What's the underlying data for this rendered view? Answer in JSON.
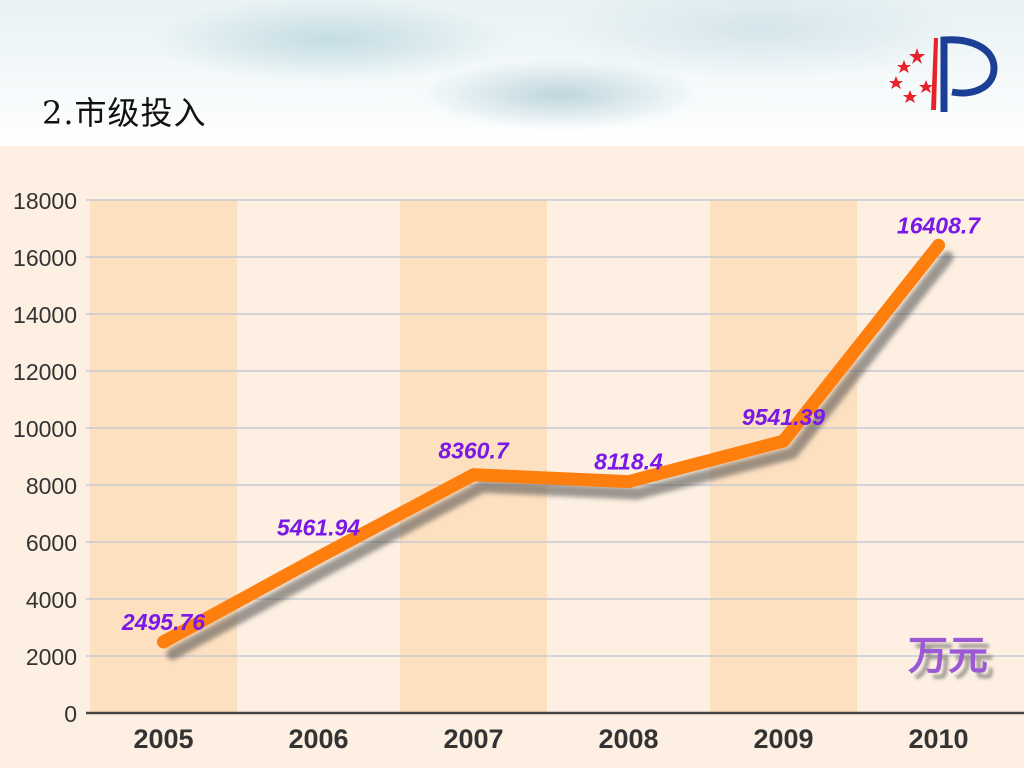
{
  "slide": {
    "title": "2.市级投入"
  },
  "logo": {
    "icon": "star-p-emblem-icon",
    "colors": {
      "stars": "#e8222a",
      "letter": "#1a3f95"
    }
  },
  "colors": {
    "line": "#ff7f0e",
    "data_label": "#7a18e8",
    "band_dark": "#fde0c0",
    "band_light": "#fdf0e2",
    "unit": "#9b59d6"
  },
  "chart_data": {
    "type": "line",
    "categories": [
      "2005",
      "2006",
      "2007",
      "2008",
      "2009",
      "2010"
    ],
    "values": [
      2495.76,
      5461.94,
      8360.7,
      8118.4,
      9541.39,
      16408.7
    ],
    "data_labels": [
      "2495.76",
      "5461.94",
      "8360.7",
      "8118.4",
      "9541.39",
      "16408.7"
    ],
    "ylim": [
      0,
      18000
    ],
    "yticks": [
      0,
      2000,
      4000,
      6000,
      8000,
      10000,
      12000,
      14000,
      16000,
      18000
    ],
    "unit_label": "万元",
    "grid": true,
    "legend": "none"
  }
}
